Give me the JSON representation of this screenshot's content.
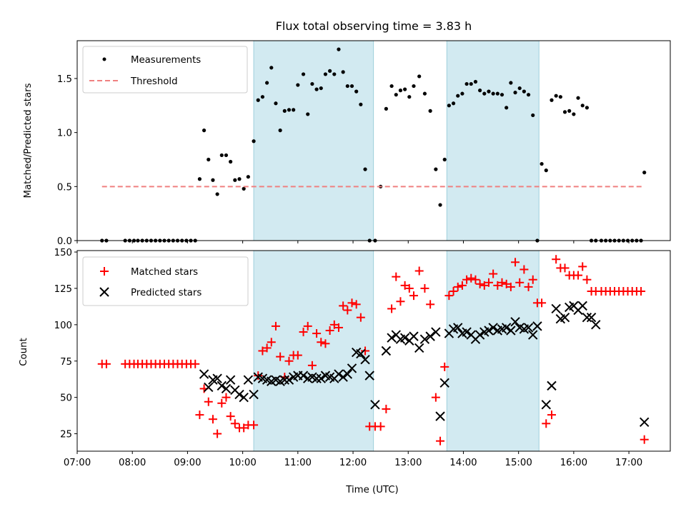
{
  "chart_data": [
    {
      "type": "scatter",
      "title": "Flux total observing time = 3.83 h",
      "xlabel": "",
      "ylabel": "Matched/Predicted stars",
      "ylim": [
        0,
        1.85
      ],
      "yticks": [
        "0.0",
        "0.5",
        "1.0",
        "1.5"
      ],
      "ytick_values": [
        0,
        0.5,
        1.0,
        1.5
      ],
      "xlim": [
        7.0,
        17.75
      ],
      "shaded_spans": [
        [
          10.2,
          12.37
        ],
        [
          13.7,
          15.37
        ]
      ],
      "shade_color": "#add8e6",
      "legend_position": "upper left",
      "series": [
        {
          "name": "Measurements",
          "kind": "points",
          "color": "#000000",
          "x": [
            7.45,
            7.53,
            7.87,
            7.95,
            8.03,
            8.1,
            8.18,
            8.26,
            8.34,
            8.42,
            8.5,
            8.58,
            8.66,
            8.74,
            8.82,
            8.9,
            8.98,
            9.06,
            9.14,
            9.22,
            9.3,
            9.38,
            9.46,
            9.54,
            9.62,
            9.7,
            9.78,
            9.86,
            9.94,
            10.02,
            10.1,
            10.2,
            10.28,
            10.36,
            10.44,
            10.52,
            10.6,
            10.68,
            10.76,
            10.84,
            10.92,
            11.0,
            11.1,
            11.18,
            11.26,
            11.34,
            11.42,
            11.5,
            11.58,
            11.66,
            11.74,
            11.82,
            11.9,
            11.98,
            12.06,
            12.14,
            12.22,
            12.3,
            12.4,
            12.5,
            12.6,
            12.7,
            12.78,
            12.86,
            12.94,
            13.02,
            13.1,
            13.2,
            13.3,
            13.4,
            13.5,
            13.58,
            13.66,
            13.74,
            13.82,
            13.9,
            13.98,
            14.06,
            14.14,
            14.22,
            14.3,
            14.38,
            14.46,
            14.54,
            14.62,
            14.7,
            14.78,
            14.86,
            14.94,
            15.02,
            15.1,
            15.18,
            15.26,
            15.34,
            15.42,
            15.5,
            15.6,
            15.68,
            15.76,
            15.84,
            15.92,
            16.0,
            16.08,
            16.16,
            16.24,
            16.32,
            16.4,
            16.5,
            16.58,
            16.66,
            16.74,
            16.82,
            16.9,
            16.98,
            17.06,
            17.14,
            17.22,
            17.28
          ],
          "y": [
            0,
            0,
            0,
            0,
            0,
            0,
            0,
            0,
            0,
            0,
            0,
            0,
            0,
            0,
            0,
            0,
            0,
            0,
            0,
            0.57,
            1.02,
            0.75,
            0.56,
            0.43,
            0.79,
            0.79,
            0.73,
            0.56,
            0.57,
            0.48,
            0.59,
            0.92,
            1.3,
            1.33,
            1.46,
            1.6,
            1.27,
            1.02,
            1.2,
            1.21,
            1.21,
            1.44,
            1.54,
            1.17,
            1.45,
            1.4,
            1.41,
            1.54,
            1.57,
            1.54,
            1.77,
            1.56,
            1.43,
            1.43,
            1.38,
            1.26,
            0.66,
            0,
            0,
            0.5,
            1.22,
            1.43,
            1.35,
            1.39,
            1.4,
            1.33,
            1.43,
            1.52,
            1.36,
            1.2,
            0.66,
            0.33,
            0.75,
            1.25,
            1.27,
            1.34,
            1.36,
            1.45,
            1.45,
            1.47,
            1.39,
            1.36,
            1.38,
            1.36,
            1.36,
            1.35,
            1.23,
            1.46,
            1.37,
            1.41,
            1.38,
            1.35,
            1.16,
            0,
            0.71,
            0.65,
            1.3,
            1.34,
            1.33,
            1.19,
            1.2,
            1.17,
            1.32,
            1.25,
            1.23,
            0,
            0,
            0,
            0,
            0,
            0,
            0,
            0,
            0,
            0,
            0,
            0,
            0.63
          ]
        },
        {
          "name": "Threshold",
          "kind": "dashed-line",
          "color": "#f08080",
          "x": [
            7.45,
            17.28
          ],
          "y": [
            0.5,
            0.5
          ]
        }
      ]
    },
    {
      "type": "scatter",
      "title": "",
      "xlabel": "Time (UTC)",
      "ylabel": "Count",
      "ylim": [
        13,
        151
      ],
      "yticks": [
        "25",
        "50",
        "75",
        "100",
        "125",
        "150"
      ],
      "ytick_values": [
        25,
        50,
        75,
        100,
        125,
        150
      ],
      "xlim": [
        7.0,
        17.75
      ],
      "xticks": [
        "07:00",
        "08:00",
        "09:00",
        "10:00",
        "11:00",
        "12:00",
        "13:00",
        "14:00",
        "15:00",
        "16:00",
        "17:00"
      ],
      "xtick_values": [
        7,
        8,
        9,
        10,
        11,
        12,
        13,
        14,
        15,
        16,
        17
      ],
      "shaded_spans": [
        [
          10.2,
          12.37
        ],
        [
          13.7,
          15.37
        ]
      ],
      "shade_color": "#add8e6",
      "legend_position": "upper left",
      "series": [
        {
          "name": "Matched stars",
          "kind": "plus",
          "color": "#ff0000",
          "x": [
            7.45,
            7.53,
            7.87,
            7.95,
            8.03,
            8.1,
            8.18,
            8.26,
            8.34,
            8.42,
            8.5,
            8.58,
            8.66,
            8.74,
            8.82,
            8.9,
            8.98,
            9.06,
            9.14,
            9.22,
            9.3,
            9.38,
            9.46,
            9.54,
            9.62,
            9.7,
            9.78,
            9.86,
            9.94,
            10.02,
            10.1,
            10.2,
            10.28,
            10.36,
            10.44,
            10.52,
            10.6,
            10.68,
            10.76,
            10.84,
            10.92,
            11.0,
            11.1,
            11.18,
            11.26,
            11.34,
            11.42,
            11.5,
            11.58,
            11.66,
            11.74,
            11.82,
            11.9,
            11.98,
            12.06,
            12.14,
            12.22,
            12.3,
            12.4,
            12.5,
            12.6,
            12.7,
            12.78,
            12.86,
            12.94,
            13.02,
            13.1,
            13.2,
            13.3,
            13.4,
            13.5,
            13.58,
            13.66,
            13.74,
            13.82,
            13.9,
            13.98,
            14.06,
            14.14,
            14.22,
            14.3,
            14.38,
            14.46,
            14.54,
            14.62,
            14.7,
            14.78,
            14.86,
            14.94,
            15.02,
            15.1,
            15.18,
            15.26,
            15.34,
            15.42,
            15.5,
            15.6,
            15.68,
            15.76,
            15.84,
            15.92,
            16.0,
            16.08,
            16.16,
            16.24,
            16.32,
            16.4,
            16.5,
            16.58,
            16.66,
            16.74,
            16.82,
            16.9,
            16.98,
            17.06,
            17.14,
            17.22,
            17.28
          ],
          "y": [
            73,
            73,
            73,
            73,
            73,
            73,
            73,
            73,
            73,
            73,
            73,
            73,
            73,
            73,
            73,
            73,
            73,
            73,
            73,
            38,
            56,
            47,
            35,
            25,
            46,
            50,
            37,
            32,
            29,
            29,
            31,
            31,
            65,
            82,
            84,
            88,
            99,
            78,
            64,
            75,
            79,
            79,
            95,
            99,
            72,
            94,
            88,
            87,
            96,
            100,
            98,
            113,
            110,
            115,
            114,
            105,
            82,
            30,
            30,
            30,
            42,
            111,
            133,
            116,
            127,
            125,
            120,
            137,
            125,
            114,
            50,
            20,
            71,
            120,
            123,
            126,
            127,
            131,
            132,
            131,
            128,
            127,
            129,
            135,
            127,
            129,
            128,
            126,
            143,
            129,
            138,
            126,
            131,
            115,
            115,
            32,
            38,
            145,
            139,
            139,
            134,
            134,
            134,
            140,
            131,
            123,
            123,
            123,
            123,
            123,
            123,
            123,
            123,
            123,
            123,
            123,
            123,
            21
          ]
        },
        {
          "name": "Predicted stars",
          "kind": "x",
          "color": "#000000",
          "x": [
            9.3,
            9.38,
            9.46,
            9.54,
            9.62,
            9.7,
            9.78,
            9.86,
            9.94,
            10.02,
            10.1,
            10.2,
            10.28,
            10.36,
            10.44,
            10.52,
            10.6,
            10.68,
            10.76,
            10.84,
            10.92,
            11.0,
            11.1,
            11.18,
            11.26,
            11.34,
            11.42,
            11.5,
            11.58,
            11.66,
            11.74,
            11.82,
            11.9,
            11.98,
            12.06,
            12.14,
            12.22,
            12.3,
            12.4,
            12.5,
            12.6,
            12.7,
            12.78,
            12.86,
            12.94,
            13.02,
            13.1,
            13.2,
            13.3,
            13.4,
            13.5,
            13.58,
            13.66,
            13.74,
            13.82,
            13.9,
            13.98,
            14.06,
            14.14,
            14.22,
            14.3,
            14.38,
            14.46,
            14.54,
            14.62,
            14.7,
            14.78,
            14.86,
            14.94,
            15.02,
            15.1,
            15.18,
            15.26,
            15.34,
            15.42,
            15.5,
            15.6,
            15.68,
            15.76,
            15.84,
            15.92,
            16.0,
            16.08,
            16.16,
            16.24,
            16.32,
            16.4,
            17.28
          ],
          "y": [
            66,
            57,
            62,
            63,
            58,
            56,
            62,
            55,
            52,
            50,
            62,
            52,
            64,
            63,
            62,
            61,
            62,
            61,
            62,
            62,
            64,
            65,
            65,
            63,
            64,
            63,
            63,
            65,
            64,
            63,
            66,
            64,
            66,
            70,
            81,
            80,
            76,
            65,
            45,
            null,
            82,
            91,
            93,
            90,
            91,
            89,
            92,
            84,
            90,
            92,
            95,
            37,
            60,
            94,
            97,
            98,
            94,
            95,
            93,
            90,
            93,
            95,
            96,
            98,
            96,
            97,
            98,
            96,
            102,
            98,
            97,
            98,
            93,
            99,
            null,
            45,
            58,
            111,
            104,
            105,
            112,
            113,
            110,
            113,
            105,
            105,
            100,
            33
          ]
        }
      ]
    }
  ]
}
